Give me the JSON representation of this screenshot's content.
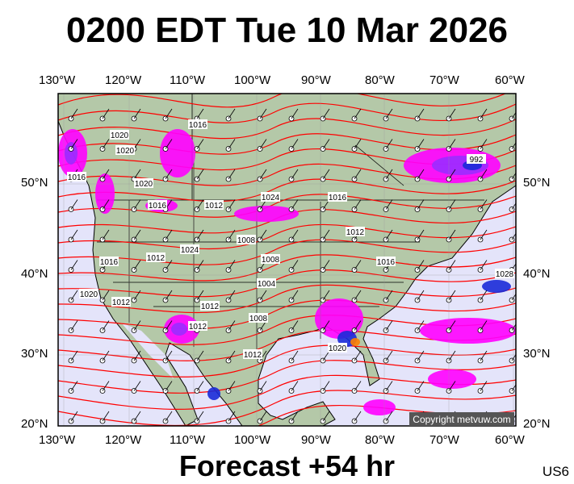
{
  "title": "0200 EDT Tue 10 Mar 2026",
  "footer": "Forecast +54 hr",
  "region_code": "US6",
  "copyright": "Copyright metvuw.com",
  "lon_labels": [
    "130°W",
    "120°W",
    "110°W",
    "100°W",
    "90°W",
    "80°W",
    "70°W",
    "60°W"
  ],
  "lat_labels": [
    "50°N",
    "40°N",
    "30°N",
    "20°N"
  ],
  "isobar_labels": [
    "1016",
    "1020",
    "1020",
    "1020",
    "1024",
    "1016",
    "1012",
    "1008",
    "1012",
    "1016",
    "1024",
    "1016",
    "1012",
    "1008",
    "1004",
    "1012",
    "1012",
    "1008",
    "1012",
    "1016",
    "1020",
    "1012",
    "992",
    "1028",
    "1016",
    "1020"
  ],
  "colors": {
    "ocean": "#e4e4fa",
    "land": "#b4c8a8",
    "isobar": "#ff0000",
    "precip_light": "#ff00ff",
    "precip_mid": "#9a2cff",
    "precip_heavy": "#1a2ad8",
    "border": "#000000"
  }
}
